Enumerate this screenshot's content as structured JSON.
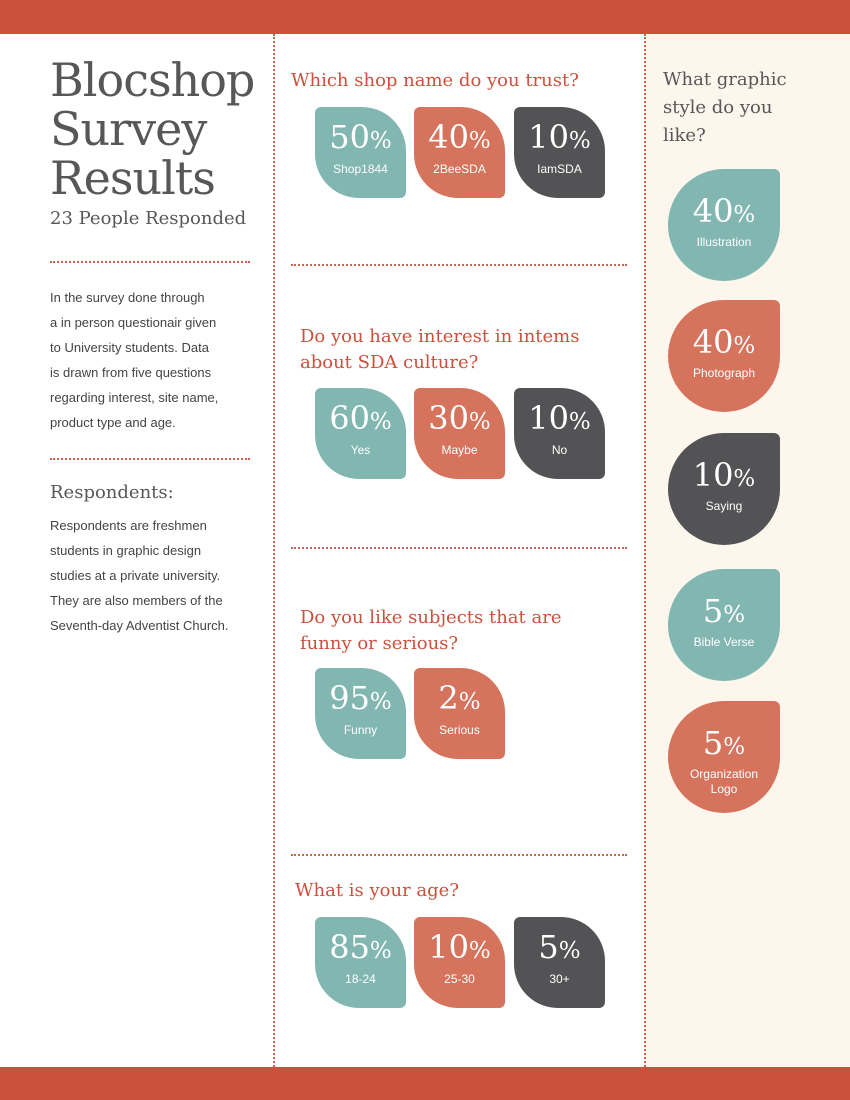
{
  "header": {
    "title_lines": [
      "Blocshop",
      "Survey",
      "Results"
    ],
    "subtitle": "23 People Responded"
  },
  "intro": {
    "lines": [
      "In the survey done through",
      "a in person questionair given",
      "to University students. Data",
      "is drawn from five questions",
      "regarding interest, site name,",
      "product type and age."
    ]
  },
  "respondents": {
    "heading": "Respondents:",
    "lines": [
      "Respondents are freshmen",
      "students in graphic design",
      "studies at a private university.",
      "They are also members of the",
      "Seventh-day Adventist Church."
    ]
  },
  "colors": {
    "band": "#cc503c",
    "teal": "#81b6b1",
    "coral": "#d6735d",
    "dark": "#535355",
    "panel": "#fdf6ec"
  },
  "questions": [
    {
      "lines": [
        "Which shop name do you trust?"
      ],
      "answers": [
        {
          "num": "50",
          "sym": "%",
          "label": "Shop1844",
          "color": "teal"
        },
        {
          "num": "40",
          "sym": "%",
          "label": "2BeeSDA",
          "color": "coral"
        },
        {
          "num": "10",
          "sym": "%",
          "label": "IamSDA",
          "color": "dark"
        }
      ]
    },
    {
      "lines": [
        "Do you have interest in intems",
        "about SDA culture?"
      ],
      "answers": [
        {
          "num": "60",
          "sym": "%",
          "label": "Yes",
          "color": "teal"
        },
        {
          "num": "30",
          "sym": "%",
          "label": "Maybe",
          "color": "coral"
        },
        {
          "num": "10",
          "sym": "%",
          "label": "No",
          "color": "dark"
        }
      ]
    },
    {
      "lines": [
        "Do you like subjects that are",
        "funny or serious?"
      ],
      "answers": [
        {
          "num": "95",
          "sym": "%",
          "label": "Funny",
          "color": "teal"
        },
        {
          "num": "2",
          "sym": "%",
          "label": "Serious",
          "color": "coral"
        }
      ]
    },
    {
      "lines": [
        "What is your age?"
      ],
      "answers": [
        {
          "num": "85",
          "sym": "%",
          "label": "18-24",
          "color": "teal"
        },
        {
          "num": "10",
          "sym": "%",
          "label": "25-30",
          "color": "coral"
        },
        {
          "num": "5",
          "sym": "%",
          "label": "30+",
          "color": "dark"
        }
      ]
    }
  ],
  "style_question": {
    "lines": [
      "What graphic",
      "style do you",
      "like?"
    ],
    "answers": [
      {
        "num": "40",
        "sym": "%",
        "label": "Illustration",
        "color": "teal"
      },
      {
        "num": "40",
        "sym": "%",
        "label": "Photograph",
        "color": "coral"
      },
      {
        "num": "10",
        "sym": "%",
        "label": "Saying",
        "color": "dark"
      },
      {
        "num": "5",
        "sym": "%",
        "label": "Bible Verse",
        "color": "teal"
      },
      {
        "num": "5",
        "sym": "%",
        "label": "Organization Logo",
        "color": "coral"
      }
    ]
  }
}
